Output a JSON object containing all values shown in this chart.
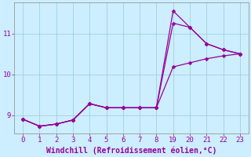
{
  "bg_color": "#cceeff",
  "line_color": "#990099",
  "grid_color": "#99cccc",
  "xlim": [
    -0.5,
    13.5
  ],
  "ylim": [
    8.55,
    11.75
  ],
  "yticks": [
    9,
    10,
    11
  ],
  "xtick_labels": [
    "0",
    "1",
    "2",
    "3",
    "4",
    "5",
    "6",
    "7",
    "8",
    "19",
    "20",
    "21",
    "22",
    "23"
  ],
  "xtick_pos": [
    0,
    1,
    2,
    3,
    4,
    5,
    6,
    7,
    8,
    9,
    10,
    11,
    12,
    13
  ],
  "xlabel": "Windchill (Refroidissement éolien,°C)",
  "line1_x": [
    0,
    1,
    2,
    3,
    4,
    5,
    6,
    7,
    8,
    9,
    10,
    11,
    12,
    13
  ],
  "line1_y": [
    8.9,
    8.73,
    8.78,
    8.88,
    9.28,
    9.18,
    9.18,
    9.18,
    9.18,
    11.55,
    11.15,
    10.75,
    10.6,
    10.5
  ],
  "line2_x": [
    0,
    1,
    2,
    3,
    4,
    5,
    6,
    7,
    8,
    9,
    10,
    11,
    12,
    13
  ],
  "line2_y": [
    8.9,
    8.73,
    8.78,
    8.88,
    9.28,
    9.18,
    9.18,
    9.18,
    9.18,
    11.25,
    11.15,
    10.75,
    10.6,
    10.5
  ],
  "line3_x": [
    0,
    1,
    2,
    3,
    4,
    5,
    6,
    7,
    8,
    9,
    10,
    11,
    12,
    13
  ],
  "line3_y": [
    8.9,
    8.73,
    8.78,
    8.88,
    9.28,
    9.18,
    9.18,
    9.18,
    9.18,
    10.18,
    10.28,
    10.38,
    10.45,
    10.5
  ],
  "markersize": 2.5,
  "linewidth": 0.9,
  "tick_fontsize": 6.5,
  "label_fontsize": 7.0
}
